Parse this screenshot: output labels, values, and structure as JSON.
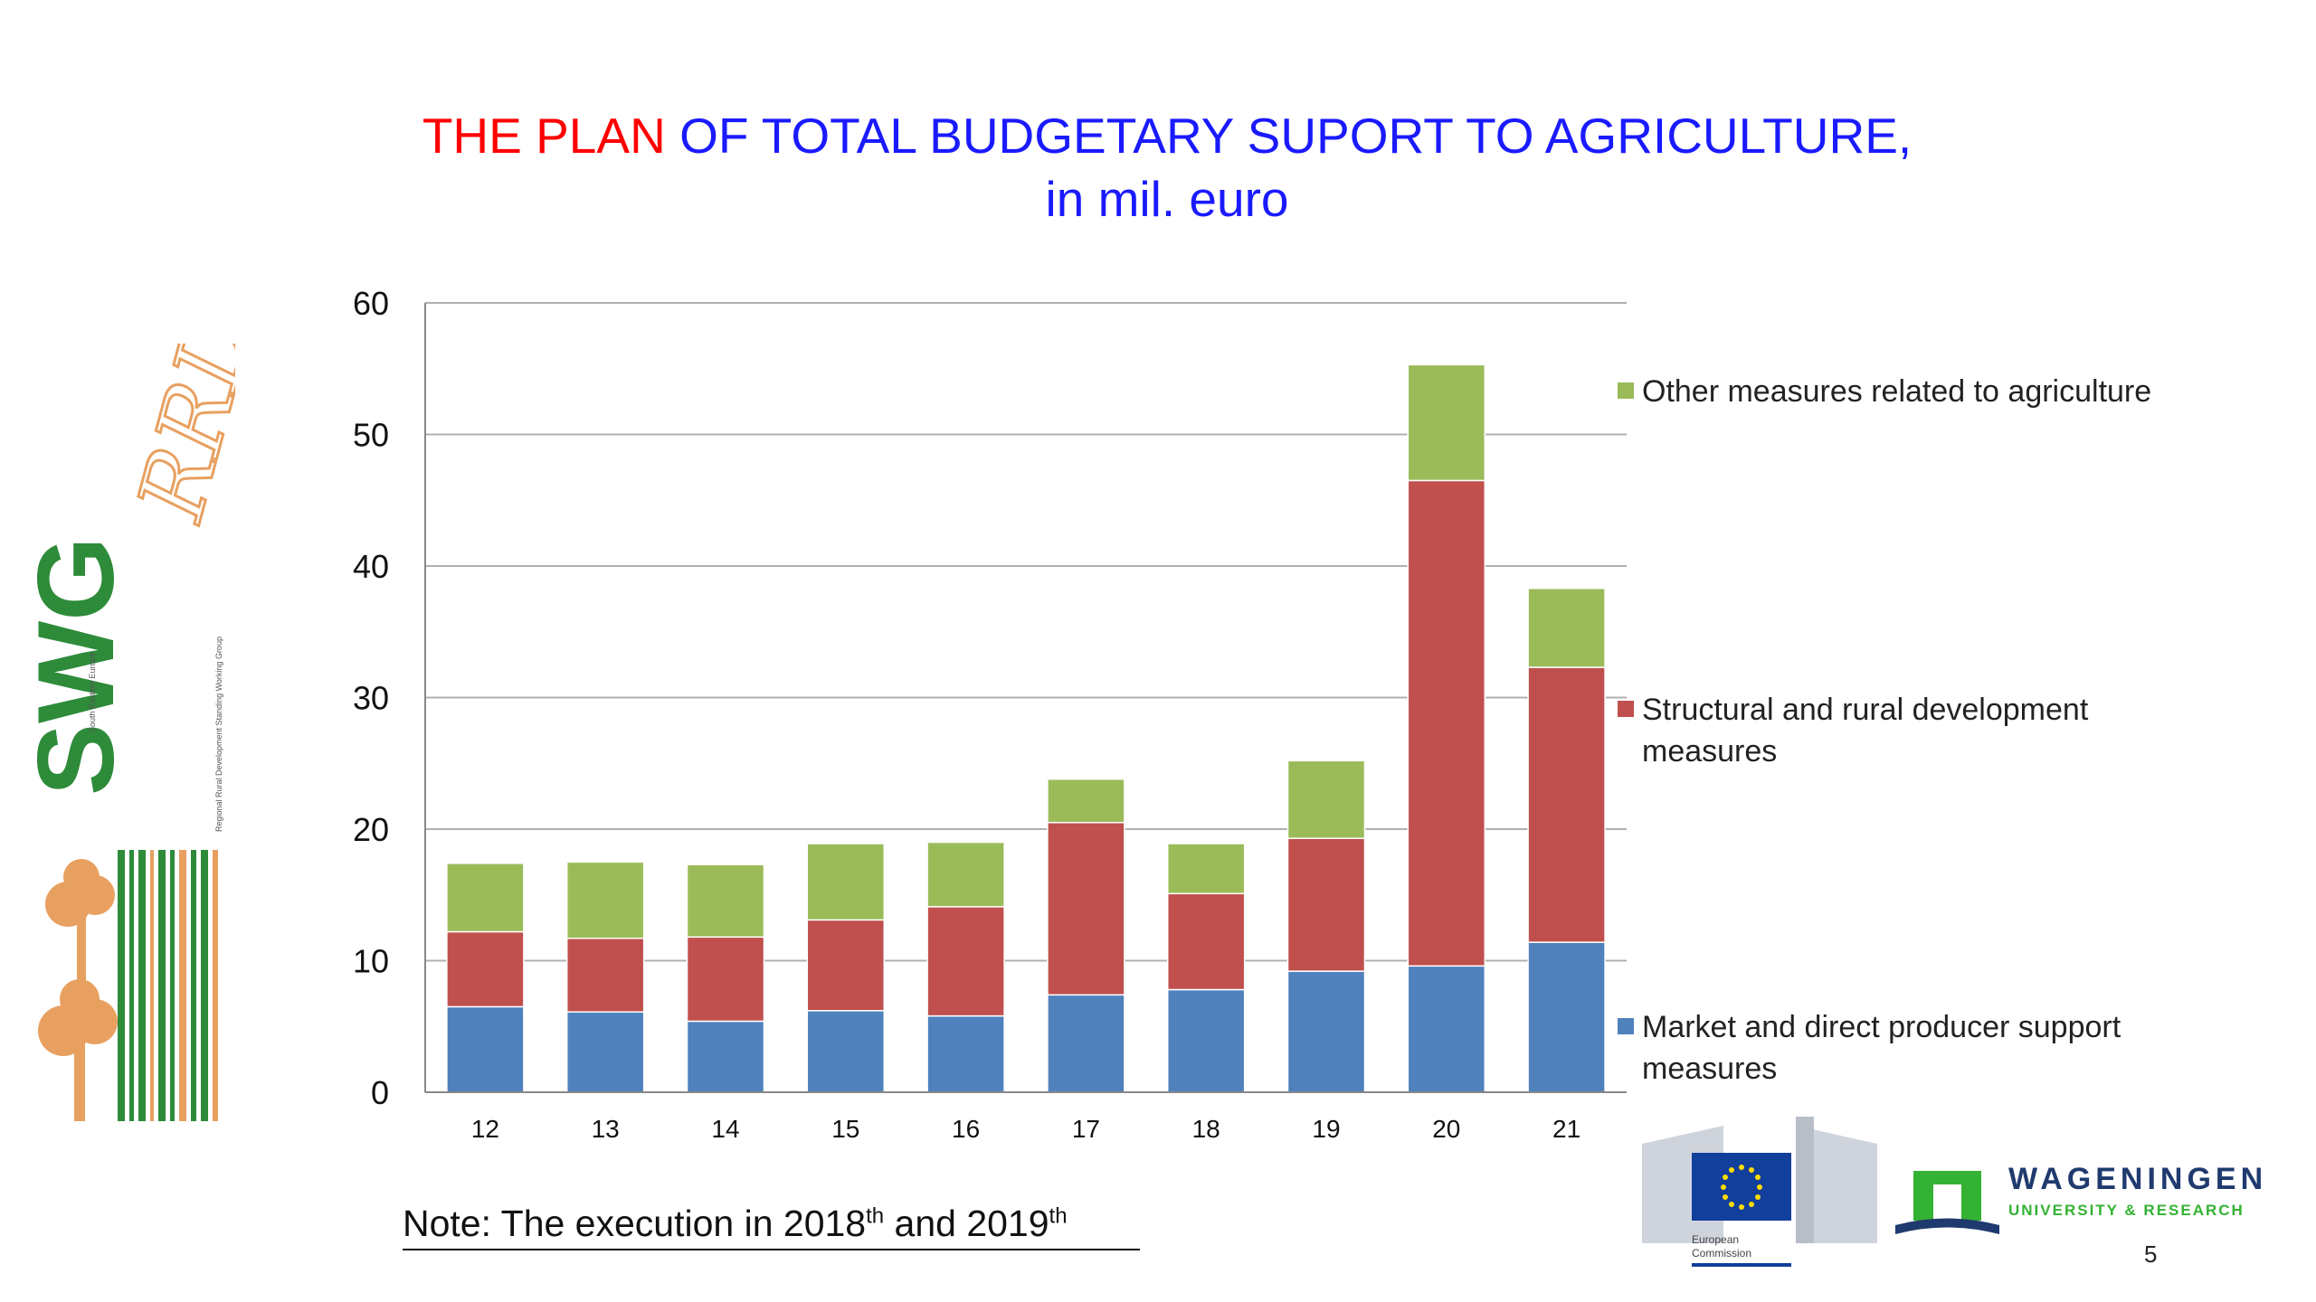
{
  "slide": {
    "title_red": "THE PLAN",
    "title_blue": " OF TOTAL BUDGETARY SUPORT TO AGRICULTURE,",
    "subtitle": "in mil. euro",
    "note_prefix": "Note: The execution in 2018",
    "note_sup1": "th",
    "note_middle": " and 2019",
    "note_sup2": "th",
    "page_number": "5"
  },
  "logos": {
    "swg_text": "SWG",
    "swg_rrd": "RRD",
    "swg_side_small": "South Eastern Europe",
    "swg_side_long": "Regional Rural Development Standing Working Group",
    "ec_text_1": "European",
    "ec_text_2": "Commission",
    "wur_name": "WAGENINGEN",
    "wur_sub": "UNIVERSITY & RESEARCH"
  },
  "colors": {
    "market": "#4f81bd",
    "structural": "#c0504d",
    "other": "#9bbb59",
    "grid": "#b0b0b0",
    "title_red": "#ff0000",
    "title_blue": "#1a1aff"
  },
  "chart_data": {
    "type": "bar",
    "stacked": true,
    "categories": [
      "12",
      "13",
      "14",
      "15",
      "16",
      "17",
      "18",
      "19",
      "20",
      "21"
    ],
    "series": [
      {
        "name": "Market and direct producer support measures",
        "values": [
          6.5,
          6.1,
          5.4,
          6.2,
          5.8,
          7.4,
          7.8,
          9.2,
          9.6,
          11.4
        ]
      },
      {
        "name": "Structural and rural development measures",
        "values": [
          5.7,
          5.6,
          6.4,
          6.9,
          8.3,
          13.1,
          7.3,
          10.1,
          36.9,
          20.9
        ]
      },
      {
        "name": "Other measures related to agriculture",
        "values": [
          5.2,
          5.8,
          5.5,
          5.8,
          4.9,
          3.3,
          3.8,
          5.9,
          8.8,
          6.0
        ]
      }
    ],
    "ylim": [
      0,
      60
    ],
    "yticks": [
      "0",
      "10",
      "20",
      "30",
      "40",
      "50",
      "60"
    ],
    "grid": true,
    "legend_position": "right"
  }
}
